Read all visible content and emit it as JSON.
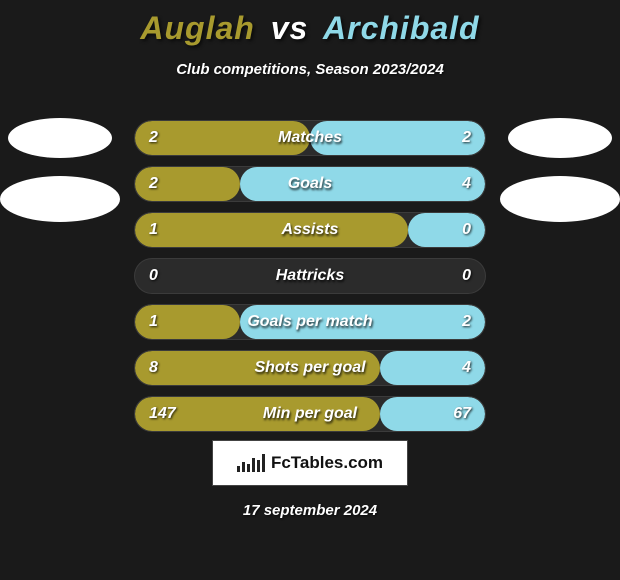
{
  "title": {
    "player1": "Auglah",
    "vs": "vs",
    "player2": "Archibald"
  },
  "subtitle": "Club competitions, Season 2023/2024",
  "colors": {
    "left": "#a89a2e",
    "right": "#8fd9e8",
    "track": "#2b2b2b",
    "title_p1": "#a89a2e",
    "title_p2": "#8fd9e8"
  },
  "stats": [
    {
      "label": "Matches",
      "left_val": "2",
      "right_val": "2",
      "left_pct": 50,
      "right_pct": 50
    },
    {
      "label": "Goals",
      "left_val": "2",
      "right_val": "4",
      "left_pct": 30,
      "right_pct": 70
    },
    {
      "label": "Assists",
      "left_val": "1",
      "right_val": "0",
      "left_pct": 78,
      "right_pct": 22
    },
    {
      "label": "Hattricks",
      "left_val": "0",
      "right_val": "0",
      "left_pct": 0,
      "right_pct": 0
    },
    {
      "label": "Goals per match",
      "left_val": "1",
      "right_val": "2",
      "left_pct": 30,
      "right_pct": 70
    },
    {
      "label": "Shots per goal",
      "left_val": "8",
      "right_val": "4",
      "left_pct": 70,
      "right_pct": 30
    },
    {
      "label": "Min per goal",
      "left_val": "147",
      "right_val": "67",
      "left_pct": 70,
      "right_pct": 30
    }
  ],
  "footer_brand": "FcTables.com",
  "date": "17 september 2024"
}
